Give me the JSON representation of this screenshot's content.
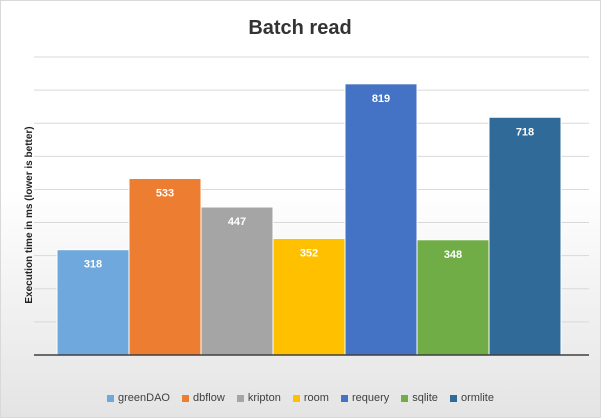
{
  "chart_data": {
    "type": "bar",
    "title": "Batch read",
    "xlabel": "",
    "ylabel": "Execution time in ms  (lower is better)",
    "ylim": [
      0,
      900
    ],
    "grid": true,
    "legend": "bottom",
    "series": [
      {
        "name": "greenDAO",
        "values": [
          318
        ],
        "color": "#6fa8dc"
      },
      {
        "name": "dbflow",
        "values": [
          533
        ],
        "color": "#ed7d31"
      },
      {
        "name": "kripton",
        "values": [
          447
        ],
        "color": "#a5a5a5"
      },
      {
        "name": "room",
        "values": [
          352
        ],
        "color": "#ffc000"
      },
      {
        "name": "requery",
        "values": [
          819
        ],
        "color": "#4472c4"
      },
      {
        "name": "sqlite",
        "values": [
          348
        ],
        "color": "#70ad47"
      },
      {
        "name": "ormlite",
        "values": [
          718
        ],
        "color": "#2f6a99"
      }
    ]
  }
}
